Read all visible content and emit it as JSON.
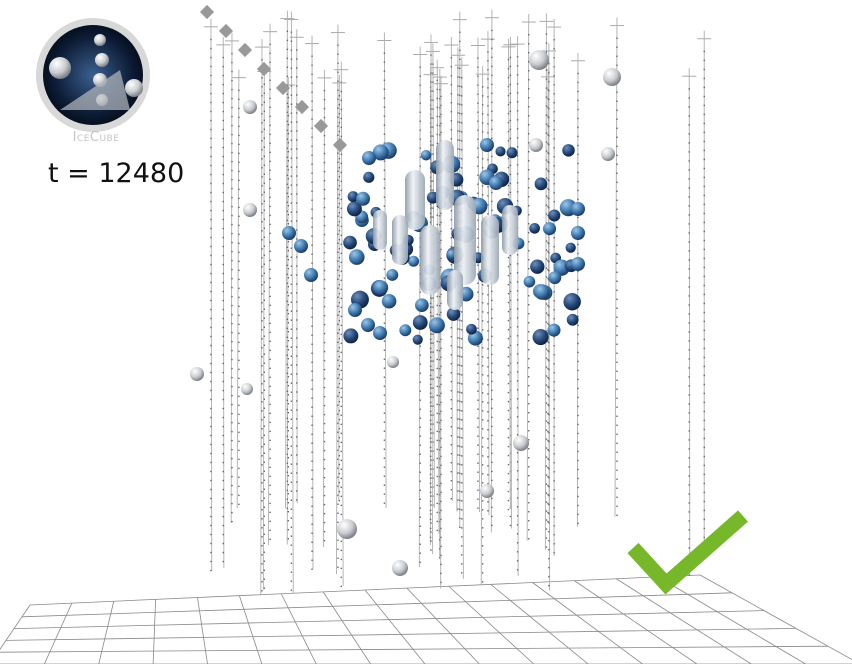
{
  "logo": {
    "text": "IceCube"
  },
  "time_label": "t = 12480"
}
